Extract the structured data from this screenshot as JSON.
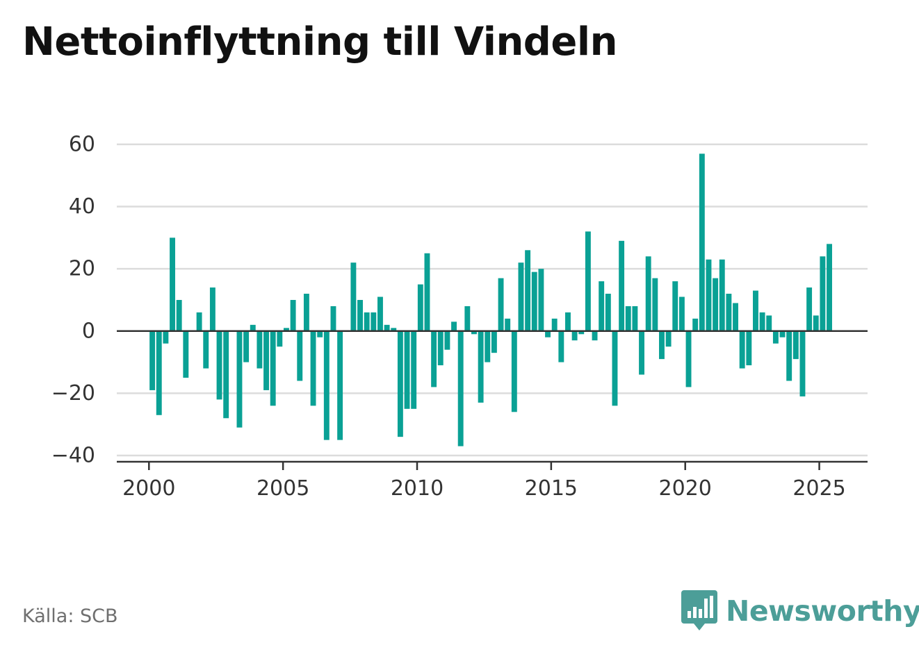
{
  "title": "Nettoinflyttning till Vindeln",
  "source": "Källa: SCB",
  "brand": {
    "name": "Newsworthy",
    "icon": "newsworthy-logo-icon",
    "color": "#4c9e98"
  },
  "chart_data": {
    "type": "bar",
    "title": "Nettoinflyttning till Vindeln",
    "xlabel": "",
    "ylabel": "",
    "ylim": [
      -42,
      64
    ],
    "yticks": [
      -40,
      -20,
      0,
      20,
      40,
      60
    ],
    "ytick_labels": [
      "−40",
      "−20",
      "0",
      "20",
      "40",
      "60"
    ],
    "xlim": [
      1998.8,
      2026.8
    ],
    "xticks": [
      2000,
      2005,
      2010,
      2015,
      2020,
      2025
    ],
    "xtick_labels": [
      "2000",
      "2005",
      "2010",
      "2015",
      "2020",
      "2025"
    ],
    "grid": true,
    "bar_color": "#0aa195",
    "x": [
      2000.125,
      2000.375,
      2000.625,
      2000.875,
      2001.125,
      2001.375,
      2001.625,
      2001.875,
      2002.125,
      2002.375,
      2002.625,
      2002.875,
      2003.125,
      2003.375,
      2003.625,
      2003.875,
      2004.125,
      2004.375,
      2004.625,
      2004.875,
      2005.125,
      2005.375,
      2005.625,
      2005.875,
      2006.125,
      2006.375,
      2006.625,
      2006.875,
      2007.125,
      2007.375,
      2007.625,
      2007.875,
      2008.125,
      2008.375,
      2008.625,
      2008.875,
      2009.125,
      2009.375,
      2009.625,
      2009.875,
      2010.125,
      2010.375,
      2010.625,
      2010.875,
      2011.125,
      2011.375,
      2011.625,
      2011.875,
      2012.125,
      2012.375,
      2012.625,
      2012.875,
      2013.125,
      2013.375,
      2013.625,
      2013.875,
      2014.125,
      2014.375,
      2014.625,
      2014.875,
      2015.125,
      2015.375,
      2015.625,
      2015.875,
      2016.125,
      2016.375,
      2016.625,
      2016.875,
      2017.125,
      2017.375,
      2017.625,
      2017.875,
      2018.125,
      2018.375,
      2018.625,
      2018.875,
      2019.125,
      2019.375,
      2019.625,
      2019.875,
      2020.125,
      2020.375,
      2020.625,
      2020.875,
      2021.125,
      2021.375,
      2021.625,
      2021.875,
      2022.125,
      2022.375,
      2022.625,
      2022.875,
      2023.125,
      2023.375,
      2023.625,
      2023.875,
      2024.125,
      2024.375,
      2024.625,
      2024.875,
      2025.125,
      2025.375
    ],
    "values": [
      -19,
      -27,
      -4,
      30,
      10,
      -15,
      0,
      6,
      -12,
      14,
      -22,
      -28,
      0,
      -31,
      -10,
      2,
      -12,
      -19,
      -24,
      -5,
      1,
      10,
      -16,
      12,
      -24,
      -2,
      -35,
      8,
      -35,
      0,
      22,
      10,
      6,
      6,
      11,
      2,
      1,
      -34,
      -25,
      -25,
      15,
      25,
      -18,
      -11,
      -6,
      3,
      -37,
      8,
      -1,
      -23,
      -10,
      -7,
      17,
      4,
      -26,
      22,
      26,
      19,
      20,
      -2,
      4,
      -10,
      6,
      -3,
      -1,
      32,
      -3,
      16,
      12,
      -24,
      29,
      8,
      8,
      -14,
      24,
      17,
      -9,
      -5,
      16,
      11,
      -18,
      4,
      57,
      23,
      17,
      23,
      12,
      9,
      -12,
      -11,
      13,
      6,
      5,
      -4,
      -2,
      -16,
      -9,
      -21,
      14,
      5,
      24,
      28
    ]
  }
}
